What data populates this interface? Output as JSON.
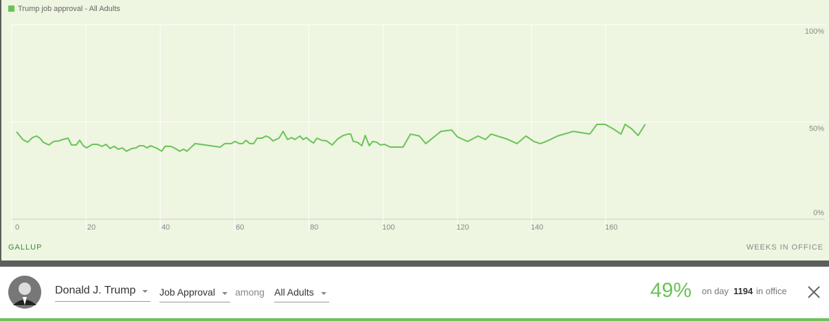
{
  "chart_data": {
    "type": "line",
    "legend_label": "Trump job approval - All Adults",
    "source": "GALLUP",
    "x_label": "WEEKS IN OFFICE",
    "xlim": [
      0,
      219
    ],
    "xticks": [
      0,
      20,
      40,
      60,
      80,
      100,
      120,
      140,
      160
    ],
    "ylim": [
      0,
      100
    ],
    "yticks": [
      {
        "value": 0,
        "label": "0%"
      },
      {
        "value": 50,
        "label": "50%"
      },
      {
        "value": 100,
        "label": "100%"
      }
    ],
    "grid": true,
    "series": [
      {
        "name": "Trump job approval - All Adults",
        "color": "#6ac259",
        "x": [
          1.3,
          3.0,
          4.3,
          5.6,
          6.7,
          7.6,
          8.5,
          10,
          11.3,
          12.8,
          13.7,
          15.2,
          16.1,
          17.4,
          18.3,
          19.3,
          20.2,
          21.7,
          23.1,
          24.3,
          25.4,
          26.5,
          27.6,
          28.7,
          29.8,
          30.9,
          32.4,
          33.5,
          34.4,
          35.4,
          36.5,
          37.4,
          38.9,
          40.4,
          41.3,
          42.8,
          44.1,
          45.2,
          46.3,
          47.2,
          49.4,
          56.1,
          57.4,
          59.1,
          60.2,
          61.3,
          62.2,
          63.1,
          64.1,
          65.2,
          66.1,
          67.4,
          68.5,
          69.4,
          70.4,
          72,
          73.1,
          74.3,
          75.4,
          76.3,
          77.6,
          78.5,
          79.4,
          80.4,
          81.3,
          82.2,
          83.5,
          84.8,
          86.3,
          87.8,
          89.3,
          90.6,
          91.3,
          92,
          93.1,
          94.3,
          95.2,
          96.3,
          97.2,
          98.3,
          99.3,
          100.4,
          102,
          105.4,
          107.4,
          109.8,
          111.5,
          115.6,
          118.5,
          120,
          122.8,
          125.6,
          127.6,
          129.1,
          133.3,
          136.1,
          138.5,
          140.6,
          142.4,
          144.3,
          147,
          151.3,
          155.7,
          157.6,
          159.8,
          161.9,
          164.1,
          165.2,
          166.9,
          168.7,
          170.6
        ],
        "values": [
          45,
          41,
          39.6,
          42,
          42.8,
          41.7,
          39.6,
          38.2,
          40,
          40.3,
          41,
          41.7,
          38.2,
          38.2,
          40.6,
          37.8,
          36.7,
          38.5,
          38.5,
          37.5,
          38.5,
          36.4,
          37.5,
          36,
          36.7,
          35,
          36.4,
          36.7,
          37.8,
          37.8,
          36.7,
          37.8,
          36.7,
          35,
          37.5,
          37.5,
          36.4,
          35,
          36,
          35,
          38.9,
          37.1,
          38.9,
          38.9,
          40,
          38.9,
          38.9,
          40.6,
          38.9,
          38.9,
          41.7,
          41.7,
          42.8,
          42,
          40.3,
          41.7,
          45.2,
          41,
          42,
          41,
          42.8,
          41,
          42,
          40.3,
          39.2,
          41.7,
          40.6,
          40.3,
          38.2,
          41.3,
          43.1,
          43.8,
          43.8,
          40,
          39.6,
          37.8,
          43.1,
          37.8,
          40,
          39.6,
          38.2,
          38.5,
          37.1,
          37.1,
          43.8,
          42.8,
          38.9,
          45.2,
          45.9,
          42.4,
          40,
          42.8,
          41,
          43.8,
          41.3,
          38.9,
          42.8,
          40,
          38.9,
          40.3,
          42.8,
          45.2,
          43.8,
          48.8,
          48.8,
          46.6,
          43.8,
          48.8,
          46.6,
          43.1,
          48.8
        ]
      }
    ]
  },
  "footer": {
    "person": "Donald J. Trump",
    "measure": "Job Approval",
    "among": "among",
    "group": "All Adults",
    "approval": "49%",
    "on_day": "on day",
    "day": "1194",
    "in_office": "in office"
  }
}
